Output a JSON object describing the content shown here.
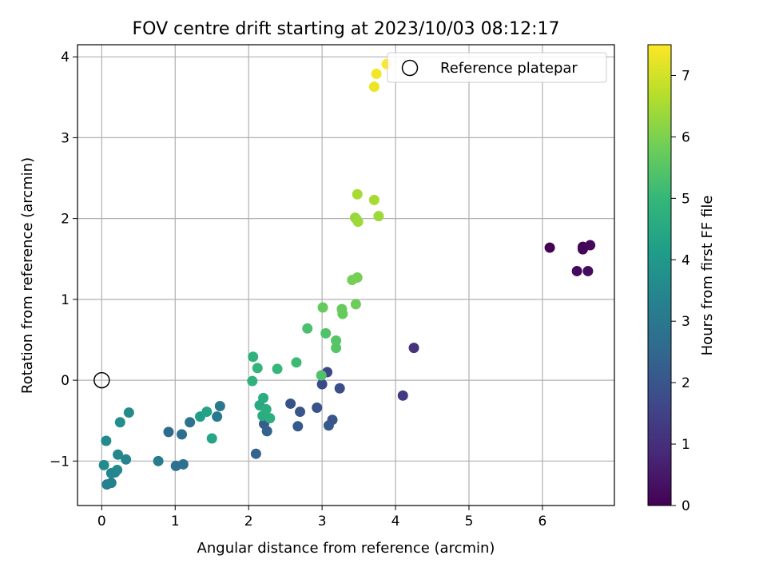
{
  "chart_data": {
    "type": "scatter",
    "title": "FOV centre drift starting at 2023/10/03 08:12:17",
    "xlabel": "Angular distance from reference (arcmin)",
    "ylabel": "Rotation from reference (arcmin)",
    "xlim": [
      -0.33,
      6.98
    ],
    "ylim": [
      -1.55,
      4.15
    ],
    "xticks": [
      0,
      1,
      2,
      3,
      4,
      5,
      6
    ],
    "xtick_labels": [
      "0",
      "1",
      "2",
      "3",
      "4",
      "5",
      "6"
    ],
    "yticks": [
      -1,
      0,
      1,
      2,
      3,
      4
    ],
    "ytick_labels": [
      "−1",
      "0",
      "1",
      "2",
      "3",
      "4"
    ],
    "grid": true,
    "legend": {
      "position": "top-right",
      "entries": [
        "Reference platepar"
      ]
    },
    "reference_point": {
      "x": 0,
      "y": 0,
      "label": "Reference platepar"
    },
    "colorbar": {
      "label": "Hours from first FF file",
      "colormap": "viridis",
      "range": [
        0,
        7.5
      ],
      "ticks": [
        0,
        1,
        2,
        3,
        4,
        5,
        6,
        7
      ],
      "tick_labels": [
        "0",
        "1",
        "2",
        "3",
        "4",
        "5",
        "6",
        "7"
      ],
      "stops": [
        "#440154",
        "#482878",
        "#3e4989",
        "#31688e",
        "#26828e",
        "#1f9e89",
        "#35b779",
        "#6ece58",
        "#b5de2b",
        "#fde725"
      ]
    },
    "points": [
      {
        "x": 6.1,
        "y": 1.64,
        "hours": 0.0
      },
      {
        "x": 6.55,
        "y": 1.65,
        "hours": 0.05
      },
      {
        "x": 6.55,
        "y": 1.62,
        "hours": 0.1
      },
      {
        "x": 6.65,
        "y": 1.67,
        "hours": 0.15
      },
      {
        "x": 6.47,
        "y": 1.35,
        "hours": 0.2
      },
      {
        "x": 6.62,
        "y": 1.35,
        "hours": 0.25
      },
      {
        "x": 4.25,
        "y": 0.4,
        "hours": 1.1
      },
      {
        "x": 4.1,
        "y": -0.19,
        "hours": 1.3
      },
      {
        "x": 3.07,
        "y": 0.1,
        "hours": 1.6
      },
      {
        "x": 3.0,
        "y": -0.05,
        "hours": 1.7
      },
      {
        "x": 3.24,
        "y": -0.1,
        "hours": 1.8
      },
      {
        "x": 2.57,
        "y": -0.29,
        "hours": 1.9
      },
      {
        "x": 2.93,
        "y": -0.34,
        "hours": 1.9
      },
      {
        "x": 2.7,
        "y": -0.39,
        "hours": 2.0
      },
      {
        "x": 3.14,
        "y": -0.49,
        "hours": 2.0
      },
      {
        "x": 3.09,
        "y": -0.56,
        "hours": 2.1
      },
      {
        "x": 2.67,
        "y": -0.57,
        "hours": 2.1
      },
      {
        "x": 2.21,
        "y": -0.54,
        "hours": 2.2
      },
      {
        "x": 2.25,
        "y": -0.63,
        "hours": 2.3
      },
      {
        "x": 2.1,
        "y": -0.91,
        "hours": 2.4
      },
      {
        "x": 0.91,
        "y": -0.64,
        "hours": 2.6
      },
      {
        "x": 1.09,
        "y": -0.67,
        "hours": 2.7
      },
      {
        "x": 1.01,
        "y": -1.06,
        "hours": 2.8
      },
      {
        "x": 1.11,
        "y": -1.04,
        "hours": 2.8
      },
      {
        "x": 1.2,
        "y": -0.52,
        "hours": 2.9
      },
      {
        "x": 1.57,
        "y": -0.45,
        "hours": 3.0
      },
      {
        "x": 1.61,
        "y": -0.32,
        "hours": 3.0
      },
      {
        "x": 0.77,
        "y": -1.0,
        "hours": 3.1
      },
      {
        "x": 0.07,
        "y": -1.29,
        "hours": 3.3
      },
      {
        "x": 0.13,
        "y": -1.27,
        "hours": 3.3
      },
      {
        "x": 0.13,
        "y": -1.15,
        "hours": 3.4
      },
      {
        "x": 0.18,
        "y": -1.14,
        "hours": 3.4
      },
      {
        "x": 0.21,
        "y": -1.11,
        "hours": 3.5
      },
      {
        "x": 0.22,
        "y": -0.92,
        "hours": 3.5
      },
      {
        "x": 0.33,
        "y": -0.98,
        "hours": 3.4
      },
      {
        "x": 0.03,
        "y": -1.05,
        "hours": 3.6
      },
      {
        "x": 0.06,
        "y": -0.75,
        "hours": 3.6
      },
      {
        "x": 0.25,
        "y": -0.52,
        "hours": 3.7
      },
      {
        "x": 0.37,
        "y": -0.4,
        "hours": 3.6
      },
      {
        "x": 1.34,
        "y": -0.45,
        "hours": 4.2
      },
      {
        "x": 1.43,
        "y": -0.39,
        "hours": 4.3
      },
      {
        "x": 1.5,
        "y": -0.72,
        "hours": 4.4
      },
      {
        "x": 2.15,
        "y": -0.31,
        "hours": 4.5
      },
      {
        "x": 2.2,
        "y": -0.22,
        "hours": 4.6
      },
      {
        "x": 2.19,
        "y": -0.44,
        "hours": 4.6
      },
      {
        "x": 2.24,
        "y": -0.36,
        "hours": 4.7
      },
      {
        "x": 2.29,
        "y": -0.47,
        "hours": 4.7
      },
      {
        "x": 2.05,
        "y": -0.01,
        "hours": 4.8
      },
      {
        "x": 2.06,
        "y": 0.29,
        "hours": 4.8
      },
      {
        "x": 2.12,
        "y": 0.15,
        "hours": 4.9
      },
      {
        "x": 2.39,
        "y": 0.14,
        "hours": 5.0
      },
      {
        "x": 2.65,
        "y": 0.22,
        "hours": 5.1
      },
      {
        "x": 2.8,
        "y": 0.64,
        "hours": 5.3
      },
      {
        "x": 2.99,
        "y": 0.06,
        "hours": 5.4
      },
      {
        "x": 3.05,
        "y": 0.58,
        "hours": 5.4
      },
      {
        "x": 3.19,
        "y": 0.49,
        "hours": 5.5
      },
      {
        "x": 3.19,
        "y": 0.4,
        "hours": 5.5
      },
      {
        "x": 3.01,
        "y": 0.9,
        "hours": 5.7
      },
      {
        "x": 3.27,
        "y": 0.88,
        "hours": 5.7
      },
      {
        "x": 3.28,
        "y": 0.82,
        "hours": 5.7
      },
      {
        "x": 3.46,
        "y": 0.94,
        "hours": 5.8
      },
      {
        "x": 3.41,
        "y": 1.24,
        "hours": 5.9
      },
      {
        "x": 3.48,
        "y": 1.27,
        "hours": 5.9
      },
      {
        "x": 3.45,
        "y": 2.01,
        "hours": 6.3
      },
      {
        "x": 3.47,
        "y": 1.99,
        "hours": 6.3
      },
      {
        "x": 3.49,
        "y": 1.96,
        "hours": 6.4
      },
      {
        "x": 3.77,
        "y": 2.03,
        "hours": 6.4
      },
      {
        "x": 3.48,
        "y": 2.3,
        "hours": 6.5
      },
      {
        "x": 3.71,
        "y": 2.23,
        "hours": 6.5
      },
      {
        "x": 3.71,
        "y": 3.63,
        "hours": 7.3
      },
      {
        "x": 3.74,
        "y": 3.79,
        "hours": 7.4
      },
      {
        "x": 3.88,
        "y": 3.91,
        "hours": 7.5
      }
    ]
  }
}
